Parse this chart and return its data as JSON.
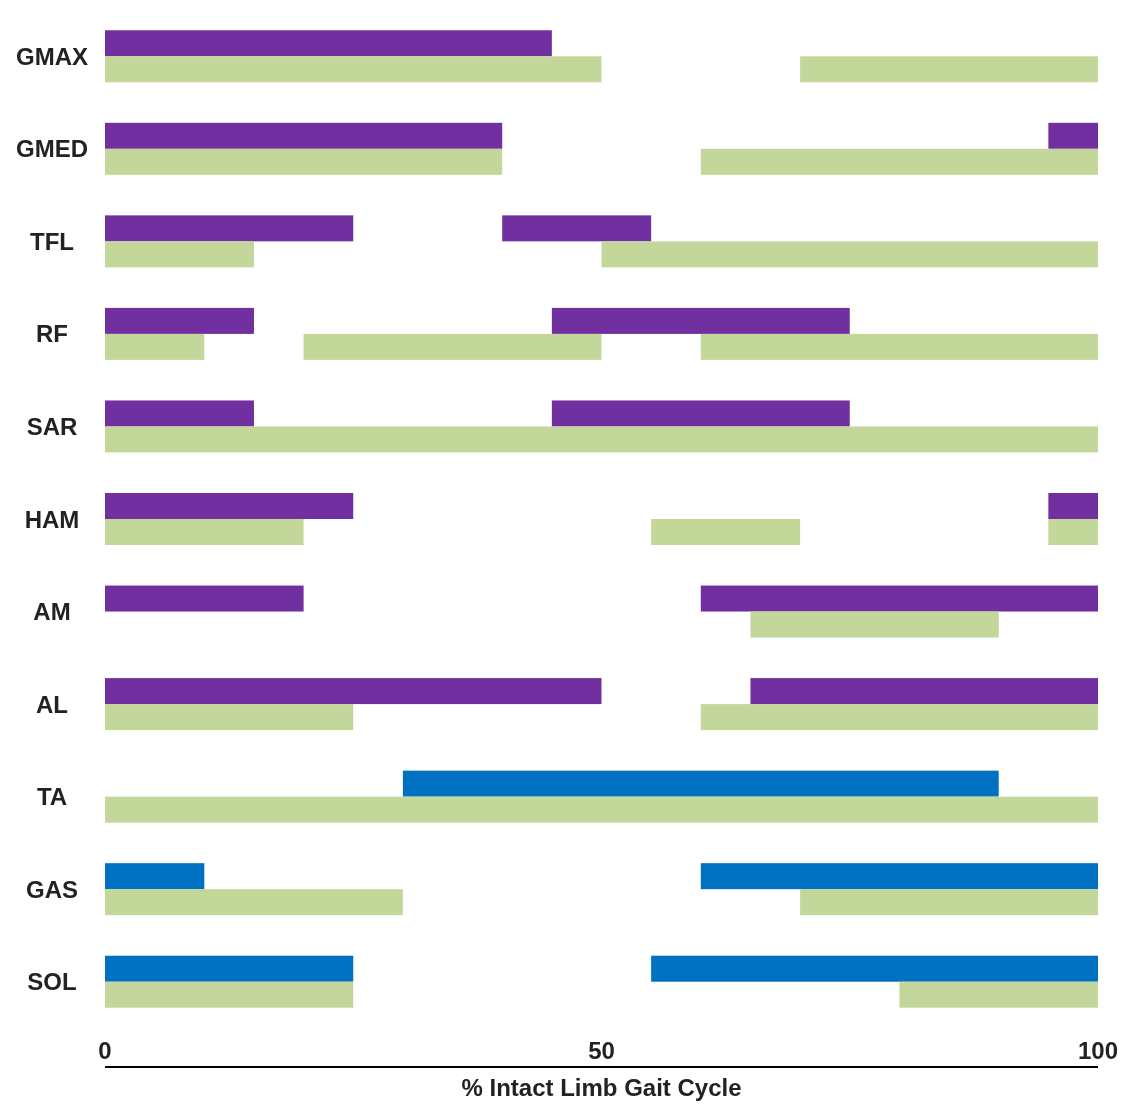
{
  "chart_data": {
    "type": "bar",
    "orientation": "horizontal",
    "xlabel": "% Intact Limb Gait Cycle",
    "categories": [
      "GMAX",
      "GMED",
      "TFL",
      "RF",
      "SAR",
      "HAM",
      "AM",
      "AL",
      "TA",
      "GAS",
      "SOL"
    ],
    "xlim": [
      0,
      100
    ],
    "xticks": [
      0,
      50,
      100
    ],
    "grid": false,
    "series": [
      {
        "colors": [
          "#7030a0",
          "#7030a0",
          "#7030a0",
          "#7030a0",
          "#7030a0",
          "#7030a0",
          "#7030a0",
          "#7030a0",
          "#0070c0",
          "#0070c0",
          "#0070c0"
        ],
        "base": [
          0,
          0,
          0,
          0,
          0,
          0,
          0,
          0,
          30,
          0,
          0
        ],
        "values": [
          45,
          40,
          25,
          15,
          15,
          25,
          20,
          50,
          60,
          10,
          25
        ]
      },
      {
        "colors": [
          null,
          "#7030a0",
          "#7030a0",
          "#7030a0",
          "#7030a0",
          "#7030a0",
          "#7030a0",
          "#7030a0",
          null,
          "#0070c0",
          "#0070c0"
        ],
        "base": [
          null,
          95,
          40,
          45,
          45,
          95,
          60,
          65,
          null,
          60,
          55
        ],
        "values": [
          null,
          5,
          15,
          30,
          30,
          5,
          40,
          35,
          null,
          40,
          45
        ]
      },
      {
        "color": "#c4d79b",
        "base": [
          0,
          0,
          0,
          0,
          0,
          0,
          65,
          0,
          0,
          0,
          0
        ],
        "values": [
          50,
          40,
          15,
          10,
          100,
          20,
          25,
          25,
          100,
          30,
          25
        ]
      },
      {
        "color": "#c4d79b",
        "base": [
          70,
          60,
          50,
          20,
          null,
          55,
          null,
          60,
          null,
          70,
          80
        ],
        "values": [
          30,
          40,
          50,
          30,
          null,
          15,
          null,
          40,
          null,
          30,
          20
        ]
      },
      {
        "color": "#c4d79b",
        "base": [
          null,
          null,
          null,
          60,
          null,
          95,
          null,
          null,
          null,
          null,
          null
        ],
        "values": [
          null,
          null,
          null,
          40,
          null,
          5,
          null,
          null,
          null,
          null,
          null
        ]
      }
    ]
  }
}
